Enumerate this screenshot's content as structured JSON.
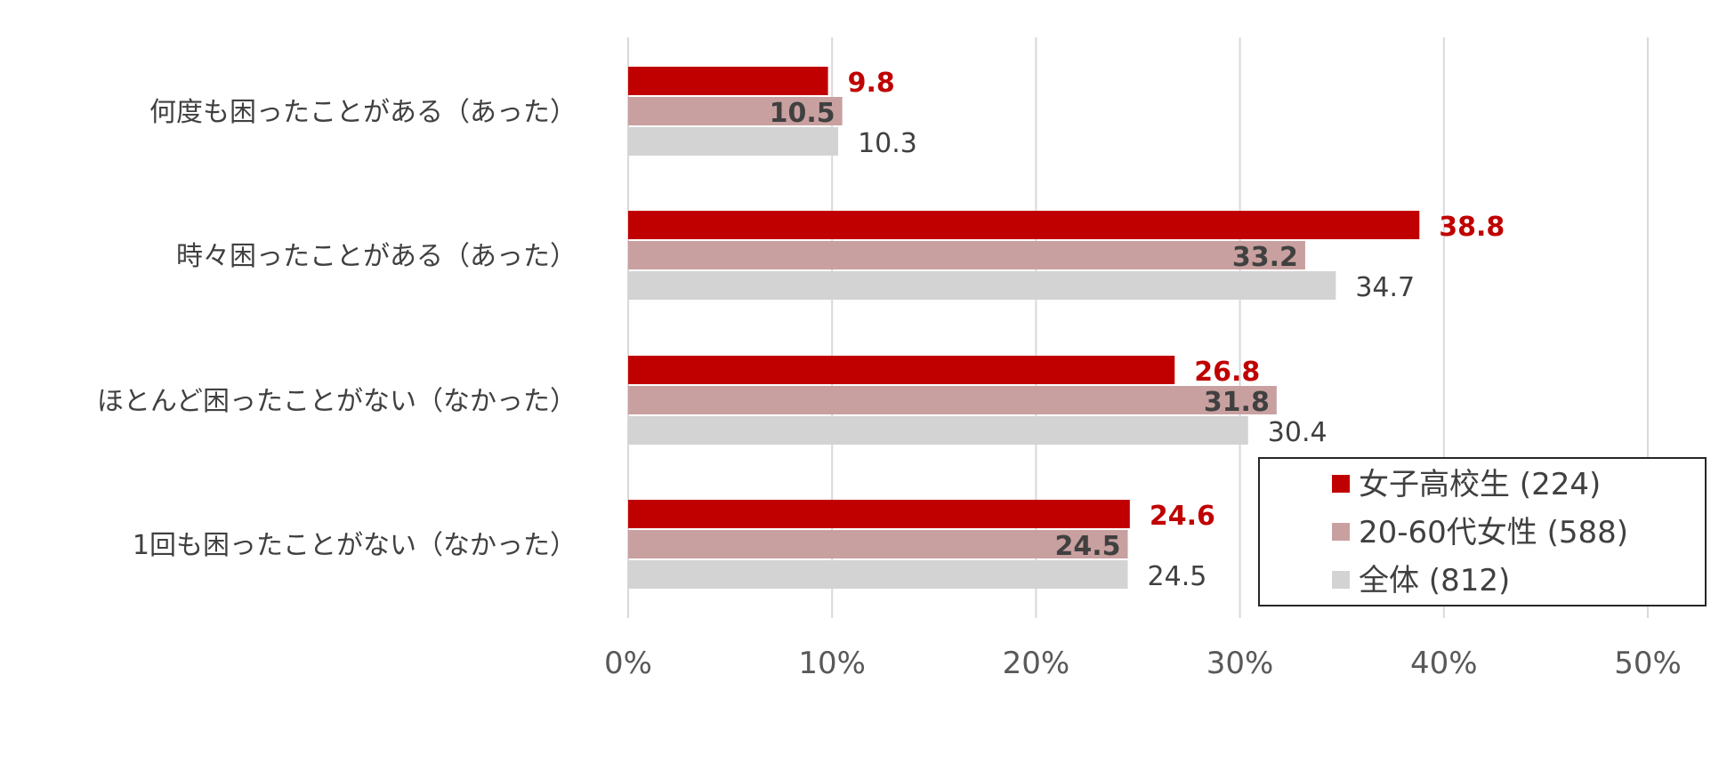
{
  "chart_data": {
    "type": "bar",
    "orientation": "horizontal",
    "categories": [
      "何度も困ったことがある（あった）",
      "時々困ったことがある（あった）",
      "ほとんど困ったことがない（なかった）",
      "1回も困ったことがない（なかった）"
    ],
    "series": [
      {
        "name": "女子高校生 (224)",
        "values": [
          9.8,
          38.8,
          26.8,
          24.6
        ],
        "color": "#c00000",
        "label_color": "#c00000",
        "label_bold": true
      },
      {
        "name": "20-60代女性 (588)",
        "values": [
          10.5,
          33.2,
          31.8,
          24.5
        ],
        "color": "#c9a0a0",
        "label_color": "#404040",
        "label_bold": true
      },
      {
        "name": "全体 (812)",
        "values": [
          10.3,
          34.7,
          30.4,
          24.5
        ],
        "color": "#d3d3d3",
        "label_color": "#404040",
        "label_bold": false
      }
    ],
    "xlim": [
      0,
      50
    ],
    "xticks": [
      "0%",
      "10%",
      "20%",
      "30%",
      "40%",
      "50%"
    ],
    "grid": true,
    "legend_position": "bottom-right"
  }
}
